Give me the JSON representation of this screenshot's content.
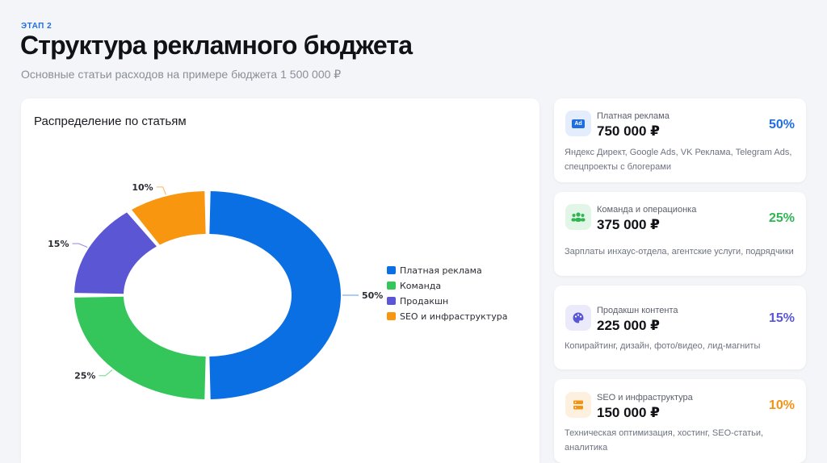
{
  "header": {
    "stage": "ЭТАП 2",
    "title": "Структура рекламного бюджета",
    "subtitle": "Основные статьи расходов на примере бюджета 1 500 000 ₽"
  },
  "chart_data": {
    "type": "pie",
    "donut": true,
    "title": "Распределение по статьям",
    "legend_position": "right",
    "categories": [
      "Платная реклама",
      "Команда",
      "Продакшн",
      "SEO и инфраструктура"
    ],
    "values": [
      50,
      25,
      15,
      10
    ],
    "labels": [
      "50%",
      "25%",
      "15%",
      "10%"
    ],
    "colors": [
      "#0b6fe4",
      "#34c65a",
      "#5b56d3",
      "#f8960f"
    ]
  },
  "cards": [
    {
      "name": "Платная реклама",
      "amount": "750 000 ₽",
      "percent": "50%",
      "description": "Яндекс Директ, Google Ads, VK Реклама, Telegram Ads, спецпроекты с блогерами",
      "icon": "ad-icon",
      "icon_text": "Ad",
      "color": "#1f6fe0",
      "icon_bg": "#e3edfc"
    },
    {
      "name": "Команда и операционка",
      "amount": "375 000 ₽",
      "percent": "25%",
      "description": "Зарплаты инхаус-отдела, агентские услуги, подрядчики",
      "icon": "team-icon",
      "color": "#2fb552",
      "icon_bg": "#e2f6e7"
    },
    {
      "name": "Продакшн контента",
      "amount": "225 000 ₽",
      "percent": "15%",
      "description": "Копирайтинг, дизайн, фото/видео, лид-магниты",
      "icon": "palette-icon",
      "color": "#5b56d3",
      "icon_bg": "#ebeafa"
    },
    {
      "name": "SEO и инфраструктура",
      "amount": "150 000 ₽",
      "percent": "10%",
      "description": "Техническая оптимизация, хостинг, SEO-статьи, аналитика",
      "icon": "server-icon",
      "color": "#f39314",
      "icon_bg": "#fdf0df"
    }
  ]
}
